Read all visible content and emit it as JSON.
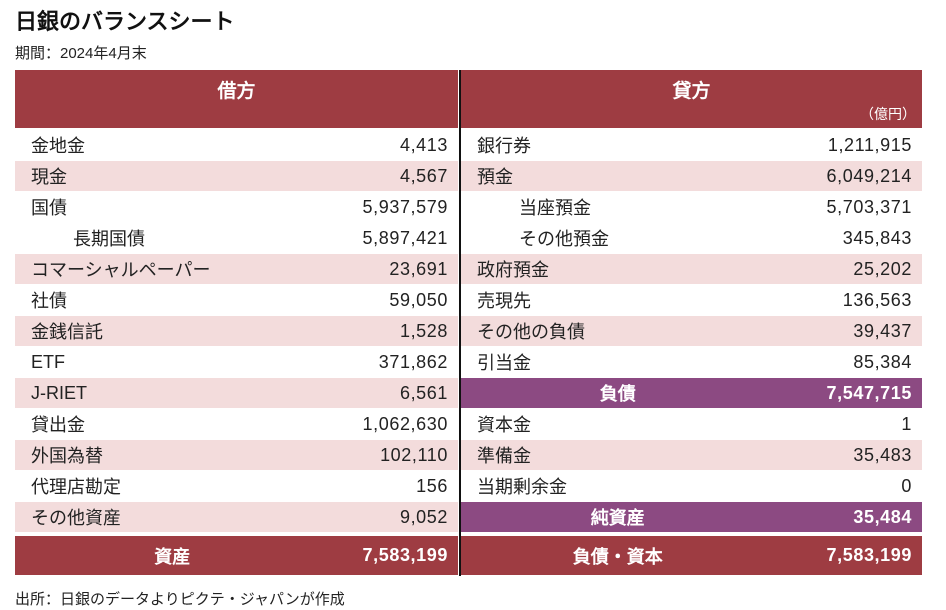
{
  "title": "日銀のバランスシート",
  "period": "期間：2024年4月末",
  "source": "出所：日銀のデータよりピクテ・ジャパンが作成",
  "colors": {
    "header": "#9e3c42",
    "subtotal": "#8c4a82",
    "shade": "#f3dcdc"
  },
  "debit": {
    "header": "借方",
    "rows": [
      {
        "label": "金地金",
        "value": "4,413",
        "shaded": false,
        "level": 1
      },
      {
        "label": "現金",
        "value": "4,567",
        "shaded": true,
        "level": 1
      },
      {
        "label": "国債",
        "value": "5,937,579",
        "shaded": false,
        "level": 1
      },
      {
        "label": "長期国債",
        "value": "5,897,421",
        "shaded": false,
        "level": 2
      },
      {
        "label": "コマーシャルペーパー",
        "value": "23,691",
        "shaded": true,
        "level": 1
      },
      {
        "label": "社債",
        "value": "59,050",
        "shaded": false,
        "level": 1
      },
      {
        "label": "金銭信託",
        "value": "1,528",
        "shaded": true,
        "level": 1
      },
      {
        "label": "ETF",
        "value": "371,862",
        "shaded": false,
        "level": 1
      },
      {
        "label": "J-RIET",
        "value": "6,561",
        "shaded": true,
        "level": 1
      },
      {
        "label": "貸出金",
        "value": "1,062,630",
        "shaded": false,
        "level": 1
      },
      {
        "label": "外国為替",
        "value": "102,110",
        "shaded": true,
        "level": 1
      },
      {
        "label": "代理店勘定",
        "value": "156",
        "shaded": false,
        "level": 1
      },
      {
        "label": "その他資産",
        "value": "9,052",
        "shaded": true,
        "level": 1
      }
    ],
    "total": {
      "label": "資産",
      "value": "7,583,199"
    }
  },
  "credit": {
    "header": "貸方",
    "unit": "（億円）",
    "rows": [
      {
        "label": "銀行券",
        "value": "1,211,915",
        "shaded": false,
        "level": 1
      },
      {
        "label": "預金",
        "value": "6,049,214",
        "shaded": true,
        "level": 1
      },
      {
        "label": "当座預金",
        "value": "5,703,371",
        "shaded": false,
        "level": 2
      },
      {
        "label": "その他預金",
        "value": "345,843",
        "shaded": false,
        "level": 2
      },
      {
        "label": "政府預金",
        "value": "25,202",
        "shaded": true,
        "level": 1
      },
      {
        "label": "売現先",
        "value": "136,563",
        "shaded": false,
        "level": 1
      },
      {
        "label": "その他の負債",
        "value": "39,437",
        "shaded": true,
        "level": 1
      },
      {
        "label": "引当金",
        "value": "85,384",
        "shaded": false,
        "level": 1
      },
      {
        "label": "負債",
        "value": "7,547,715",
        "kind": "subtotal"
      },
      {
        "label": "資本金",
        "value": "1",
        "shaded": false,
        "level": 1
      },
      {
        "label": "準備金",
        "value": "35,483",
        "shaded": true,
        "level": 1
      },
      {
        "label": "当期剰余金",
        "value": "0",
        "shaded": false,
        "level": 1
      },
      {
        "label": "純資産",
        "value": "35,484",
        "kind": "subtotal"
      }
    ],
    "total": {
      "label": "負債・資本",
      "value": "7,583,199"
    }
  }
}
